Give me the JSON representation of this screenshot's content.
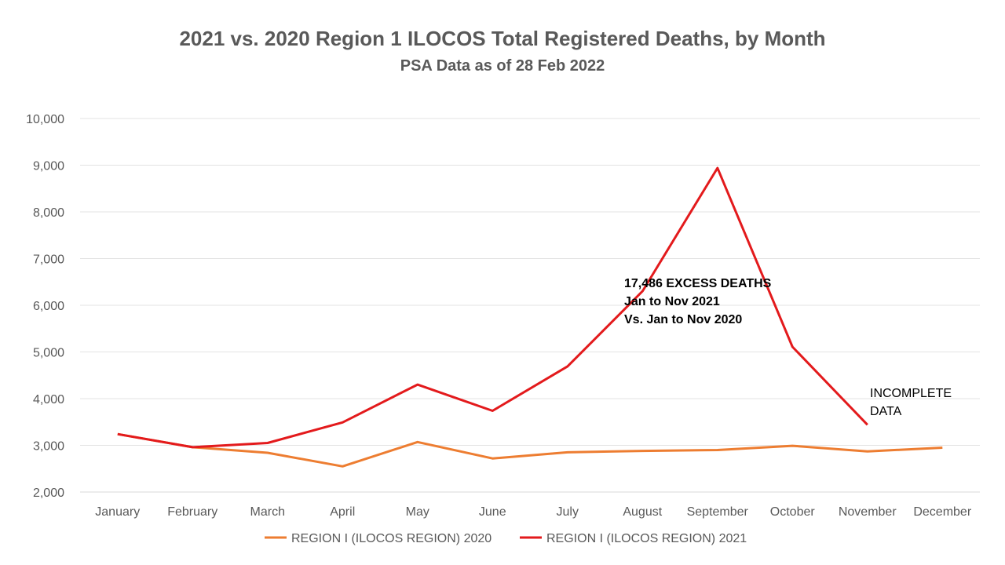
{
  "chart_data": {
    "type": "line",
    "title": "2021 vs. 2020 Region 1 ILOCOS Total Registered Deaths, by Month",
    "subtitle": "PSA Data as of 28 Feb 2022",
    "xlabel": "",
    "ylabel": "",
    "ylim": [
      2000,
      10000
    ],
    "yticks": [
      "2,000",
      "3,000",
      "4,000",
      "5,000",
      "6,000",
      "7,000",
      "8,000",
      "9,000",
      "10,000"
    ],
    "ytick_values": [
      2000,
      3000,
      4000,
      5000,
      6000,
      7000,
      8000,
      9000,
      10000
    ],
    "grid": true,
    "legend_position": "bottom",
    "categories": [
      "January",
      "February",
      "March",
      "April",
      "May",
      "June",
      "July",
      "August",
      "September",
      "October",
      "November",
      "December"
    ],
    "series": [
      {
        "name": "REGION I (ILOCOS REGION) 2020",
        "color": "#ED7D31",
        "values": [
          3240,
          2960,
          2840,
          2550,
          3070,
          2720,
          2850,
          2880,
          2900,
          2990,
          2870,
          2950
        ]
      },
      {
        "name": "REGION I (ILOCOS REGION) 2021",
        "color": "#E31A1C",
        "values": [
          3240,
          2960,
          3050,
          3490,
          4300,
          3740,
          4690,
          6300,
          8940,
          5110,
          3440,
          null
        ]
      }
    ],
    "annotations": {
      "excess": [
        "17,486 EXCESS DEATHS",
        "Jan to Nov 2021",
        "Vs. Jan to Nov 2020"
      ],
      "incomplete": [
        "INCOMPLETE",
        "DATA"
      ]
    }
  }
}
